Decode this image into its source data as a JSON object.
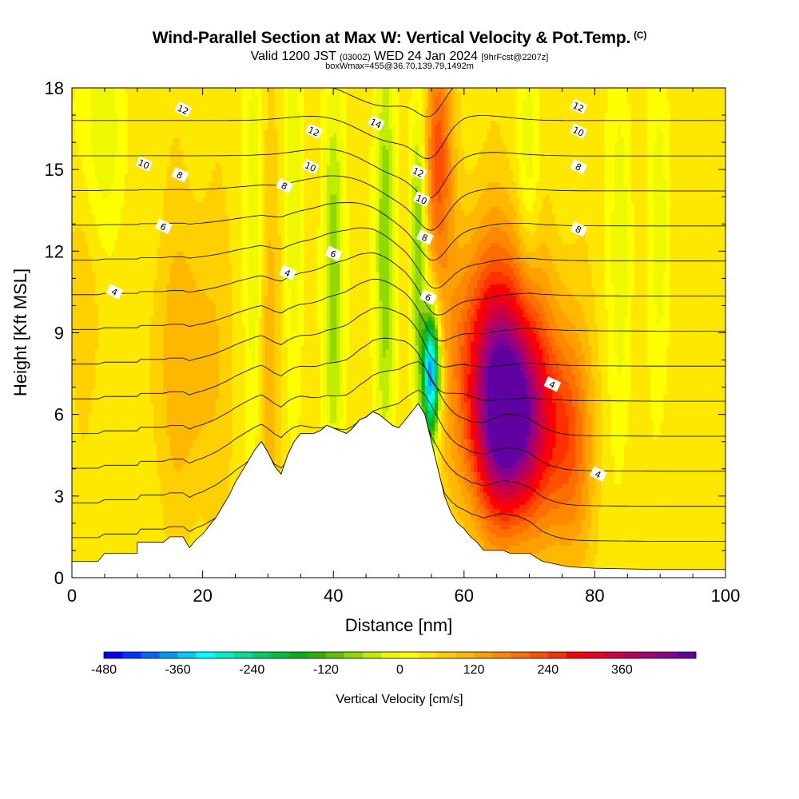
{
  "header": {
    "title": "Wind-Parallel Section at Max W: Vertical Velocity & Pot.Temp.",
    "copyright": "(C)",
    "valid_prefix": "Valid 1200 JST",
    "valid_utc": "(0300Z)",
    "valid_date": "WED 24 Jan 2024",
    "forecast": "[9hrFcst@2207z]",
    "box_info": "boxWmax=455@36.70,139.79,1492m"
  },
  "chart_data": {
    "type": "heatmap",
    "xlabel": "Distance [nm]",
    "ylabel": "Height [Kft MSL]",
    "xlim": [
      0,
      100
    ],
    "ylim": [
      0,
      18
    ],
    "x_ticks": [
      0,
      20,
      40,
      60,
      80,
      100
    ],
    "y_ticks": [
      0,
      3,
      6,
      9,
      12,
      15,
      18
    ],
    "colorbar": {
      "label": "Vertical Velocity [cm/s]",
      "ticks": [
        -480,
        -360,
        -240,
        -120,
        0,
        120,
        240,
        360
      ],
      "levels": [
        -480,
        -450,
        -420,
        -390,
        -360,
        -330,
        -300,
        -270,
        -240,
        -210,
        -180,
        -150,
        -120,
        -90,
        -60,
        -30,
        0,
        30,
        60,
        90,
        120,
        150,
        180,
        210,
        240,
        270,
        300,
        330,
        360,
        390,
        420,
        450
      ],
      "colors": [
        "#0000ff",
        "#0033ff",
        "#0066ff",
        "#0099ff",
        "#00ccff",
        "#00ffff",
        "#00f0c8",
        "#00e096",
        "#00cc66",
        "#00c040",
        "#00b020",
        "#30b000",
        "#60c000",
        "#90d800",
        "#c0ec00",
        "#f0f800",
        "#ffff00",
        "#ffe800",
        "#ffd000",
        "#ffb800",
        "#ffa000",
        "#ff8800",
        "#ff6e00",
        "#ff5000",
        "#ff3000",
        "#ff0000",
        "#e8001e",
        "#d0003c",
        "#b8005a",
        "#a00078",
        "#880090",
        "#6000a0"
      ]
    },
    "terrain": [
      [
        0,
        0.6
      ],
      [
        4,
        0.6
      ],
      [
        5,
        0.9
      ],
      [
        10,
        0.9
      ],
      [
        10,
        1.3
      ],
      [
        14,
        1.3
      ],
      [
        15,
        1.5
      ],
      [
        17,
        1.5
      ],
      [
        18,
        1.1
      ],
      [
        19,
        1.4
      ],
      [
        20,
        1.6
      ],
      [
        21,
        1.9
      ],
      [
        22,
        2.2
      ],
      [
        23,
        2.6
      ],
      [
        24,
        3.0
      ],
      [
        25,
        3.5
      ],
      [
        26,
        3.9
      ],
      [
        27,
        4.3
      ],
      [
        28,
        4.7
      ],
      [
        29,
        5.0
      ],
      [
        30,
        4.6
      ],
      [
        31,
        4.1
      ],
      [
        32,
        3.8
      ],
      [
        33,
        4.5
      ],
      [
        34,
        5.0
      ],
      [
        35,
        5.3
      ],
      [
        37,
        5.3
      ],
      [
        38,
        5.4
      ],
      [
        39,
        5.6
      ],
      [
        40,
        5.5
      ],
      [
        41,
        5.4
      ],
      [
        42,
        5.3
      ],
      [
        43,
        5.5
      ],
      [
        44,
        5.8
      ],
      [
        45,
        5.9
      ],
      [
        46,
        6.1
      ],
      [
        47,
        6.0
      ],
      [
        48,
        5.8
      ],
      [
        49,
        5.6
      ],
      [
        50,
        5.5
      ],
      [
        51,
        5.8
      ],
      [
        52,
        6.1
      ],
      [
        53,
        6.4
      ],
      [
        54,
        6.0
      ],
      [
        55,
        5.0
      ],
      [
        56,
        4.0
      ],
      [
        57,
        3.0
      ],
      [
        58,
        2.4
      ],
      [
        59,
        2.0
      ],
      [
        60,
        1.8
      ],
      [
        61,
        1.5
      ],
      [
        62,
        1.3
      ],
      [
        63,
        1.0
      ],
      [
        66,
        1.0
      ],
      [
        67,
        0.9
      ],
      [
        70,
        0.9
      ],
      [
        72,
        0.6
      ],
      [
        74,
        0.5
      ],
      [
        76,
        0.4
      ],
      [
        80,
        0.35
      ],
      [
        90,
        0.3
      ],
      [
        100,
        0.3
      ]
    ],
    "updrafts": [
      {
        "x": 67,
        "y": 5.5,
        "w_cm_s": 420,
        "sx": 4.2,
        "sy": 2.6
      },
      {
        "x": 65,
        "y": 9.0,
        "w_cm_s": 210,
        "sx": 5.0,
        "sy": 3.0
      },
      {
        "x": 76,
        "y": 5.0,
        "w_cm_s": 150,
        "sx": 2.5,
        "sy": 3.0
      },
      {
        "x": 56,
        "y": 15.5,
        "w_cm_s": 180,
        "sx": 1.5,
        "sy": 3.0
      },
      {
        "x": 18,
        "y": 8.0,
        "w_cm_s": 70,
        "sx": 4.0,
        "sy": 4.0
      },
      {
        "x": 30,
        "y": 8.0,
        "w_cm_s": 60,
        "sx": 1.5,
        "sy": 6.0
      },
      {
        "x": 2,
        "y": 12.5,
        "w_cm_s": 40,
        "sx": 3.0,
        "sy": 4.0
      }
    ],
    "downdrafts": [
      {
        "x": 55,
        "y": 7.5,
        "w_cm_s": -450,
        "sx": 0.9,
        "sy": 1.6
      },
      {
        "x": 53,
        "y": 12.0,
        "w_cm_s": -150,
        "sx": 0.9,
        "sy": 4.0
      },
      {
        "x": 48,
        "y": 12.0,
        "w_cm_s": -130,
        "sx": 1.1,
        "sy": 5.5
      },
      {
        "x": 40,
        "y": 11.0,
        "w_cm_s": -120,
        "sx": 1.2,
        "sy": 5.0
      },
      {
        "x": 28,
        "y": 12.0,
        "w_cm_s": -90,
        "sx": 1.0,
        "sy": 6.0
      },
      {
        "x": 34,
        "y": 14.0,
        "w_cm_s": -70,
        "sx": 1.0,
        "sy": 5.0
      },
      {
        "x": 70,
        "y": 15.0,
        "w_cm_s": -70,
        "sx": 1.2,
        "sy": 3.5
      },
      {
        "x": 84,
        "y": 12.0,
        "w_cm_s": -70,
        "sx": 1.2,
        "sy": 5.0
      },
      {
        "x": 90,
        "y": 13.0,
        "w_cm_s": -60,
        "sx": 1.2,
        "sy": 4.0
      },
      {
        "x": 4,
        "y": 16.0,
        "w_cm_s": -80,
        "sx": 3.0,
        "sy": 3.0
      }
    ],
    "contour_labels": [
      {
        "text": "12",
        "x": 17,
        "y": 17.2
      },
      {
        "text": "10",
        "x": 11,
        "y": 15.2
      },
      {
        "text": "8",
        "x": 16.5,
        "y": 14.8
      },
      {
        "text": "6",
        "x": 14,
        "y": 12.9
      },
      {
        "text": "4",
        "x": 6.5,
        "y": 10.5
      },
      {
        "text": "4",
        "x": 33,
        "y": 11.2
      },
      {
        "text": "6",
        "x": 40,
        "y": 11.9
      },
      {
        "text": "8",
        "x": 32.5,
        "y": 14.4
      },
      {
        "text": "10",
        "x": 36.5,
        "y": 15.1
      },
      {
        "text": "12",
        "x": 37,
        "y": 16.4
      },
      {
        "text": "14",
        "x": 46.5,
        "y": 16.7
      },
      {
        "text": "12",
        "x": 53,
        "y": 14.9
      },
      {
        "text": "10",
        "x": 53.5,
        "y": 13.9
      },
      {
        "text": "8",
        "x": 54,
        "y": 12.5
      },
      {
        "text": "6",
        "x": 54.5,
        "y": 10.3
      },
      {
        "text": "4",
        "x": 73.5,
        "y": 7.1
      },
      {
        "text": "4",
        "x": 80.5,
        "y": 3.8
      },
      {
        "text": "8",
        "x": 77.5,
        "y": 12.8
      },
      {
        "text": "8",
        "x": 77.5,
        "y": 15.1
      },
      {
        "text": "10",
        "x": 77.5,
        "y": 16.4
      },
      {
        "text": "12",
        "x": 77.5,
        "y": 17.3
      }
    ]
  }
}
